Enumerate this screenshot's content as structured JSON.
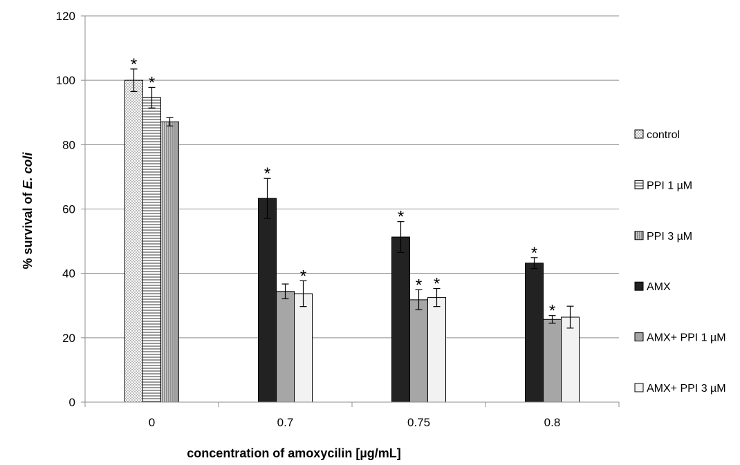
{
  "chart_data": {
    "type": "bar",
    "title": "",
    "xlabel": "concentration of amoxycilin [µg/mL]",
    "ylabel_parts": [
      "% survival of ",
      "E. coli"
    ],
    "ylim": [
      0,
      120
    ],
    "yticks": [
      0,
      20,
      40,
      60,
      80,
      100,
      120
    ],
    "grid": "horizontal",
    "legend_position": "right",
    "categories": [
      "0",
      "0.7",
      "0.75",
      "0.8"
    ],
    "series": [
      {
        "name": "control",
        "fill": "dots",
        "color": "#ffffff",
        "values": [
          100,
          null,
          null,
          null
        ],
        "errors": [
          3.5,
          null,
          null,
          null
        ],
        "significant": [
          true,
          false,
          false,
          false
        ]
      },
      {
        "name": "PPI 1 µM",
        "fill": "hlines",
        "color": "#ffffff",
        "values": [
          94.6,
          null,
          null,
          null
        ],
        "errors": [
          3.2,
          null,
          null,
          null
        ],
        "significant": [
          true,
          false,
          false,
          false
        ]
      },
      {
        "name": " PPI 3 µM",
        "fill": "vlines",
        "color": "#bbbbbb",
        "values": [
          87.1,
          null,
          null,
          null
        ],
        "errors": [
          1.3,
          null,
          null,
          null
        ],
        "significant": [
          false,
          false,
          false,
          false
        ]
      },
      {
        "name": "AMX",
        "fill": "solid",
        "color": "#222222",
        "values": [
          null,
          63.3,
          51.3,
          43.2
        ],
        "errors": [
          null,
          6.2,
          4.8,
          1.7
        ],
        "significant": [
          false,
          true,
          true,
          true
        ]
      },
      {
        "name": "AMX+ PPI 1 µM",
        "fill": "solid",
        "color": "#a6a6a6",
        "values": [
          null,
          34.4,
          31.8,
          25.7
        ],
        "errors": [
          null,
          2.3,
          3.1,
          1.2
        ],
        "significant": [
          false,
          false,
          true,
          true
        ]
      },
      {
        "name": "AMX+ PPI 3 µM",
        "fill": "solid",
        "color": "#f2f2f2",
        "values": [
          null,
          33.7,
          32.5,
          26.4
        ],
        "errors": [
          null,
          4.0,
          2.8,
          3.4
        ],
        "significant": [
          false,
          true,
          true,
          false
        ]
      }
    ],
    "significance_marker": "*"
  }
}
